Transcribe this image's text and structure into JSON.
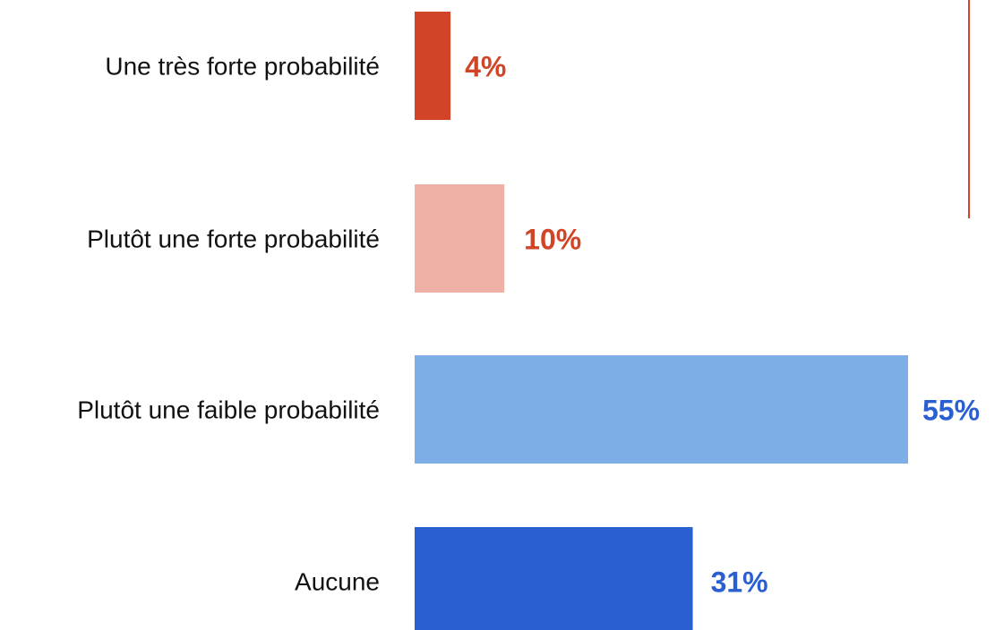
{
  "chart_data": {
    "type": "bar",
    "orientation": "horizontal",
    "categories": [
      "Une très forte probabilité",
      "Plutôt une forte probabilité",
      "Plutôt une faible probabilité",
      "Aucune"
    ],
    "values": [
      4,
      10,
      55,
      31
    ],
    "value_labels": [
      "4%",
      "10%",
      "55%",
      "31%"
    ],
    "unit": "%",
    "bar_colors": [
      "#d24427",
      "#efb0a6",
      "#7eaee6",
      "#2a5fd2"
    ],
    "value_label_colors": [
      "#d24427",
      "#d24427",
      "#2a5fd2",
      "#2a5fd2"
    ],
    "xlim": [
      0,
      55
    ],
    "grid": false,
    "legend": "none",
    "title": "",
    "xlabel": "",
    "ylabel": "",
    "annotations": {
      "reference_line_color": "#d24427"
    }
  }
}
